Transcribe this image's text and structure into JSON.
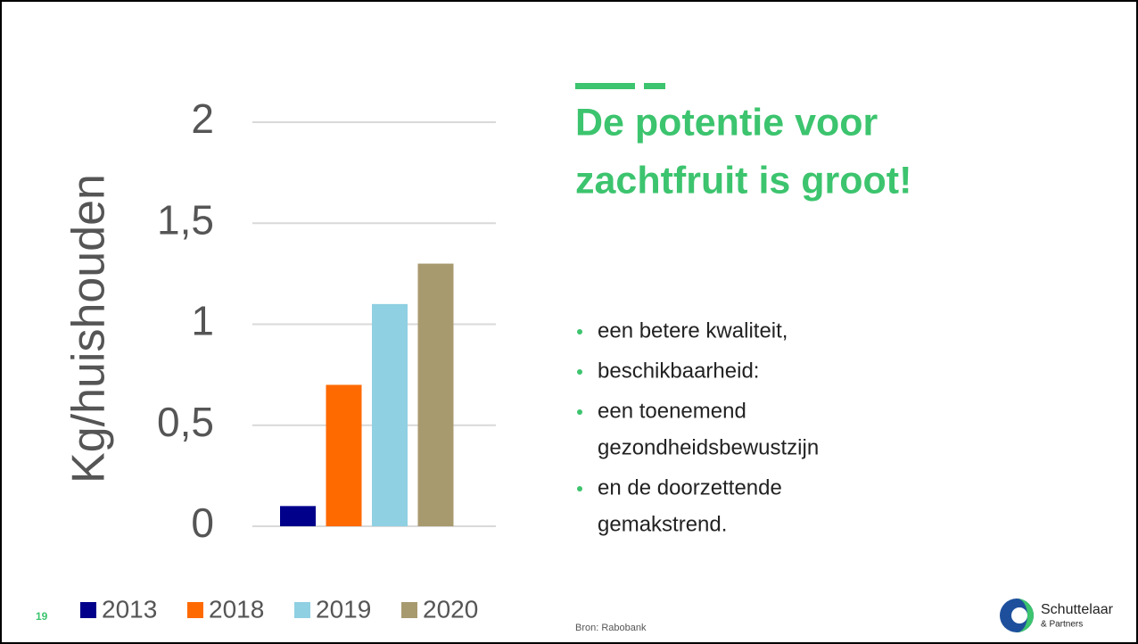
{
  "chart_data": {
    "type": "bar",
    "ylabel": "Kg/huishouden",
    "series": [
      {
        "name": "2013",
        "color": "#00008b",
        "values": [
          0.1
        ]
      },
      {
        "name": "2018",
        "color": "#ff6a00",
        "values": [
          0.7
        ]
      },
      {
        "name": "2019",
        "color": "#8fd0e2",
        "values": [
          1.1
        ]
      },
      {
        "name": "2020",
        "color": "#a89a6f",
        "values": [
          1.3
        ]
      }
    ],
    "ylim": [
      0,
      2
    ],
    "yticks": [
      0,
      {
        "value": 0.5,
        "label": "0,5"
      },
      1,
      {
        "value": 1.5,
        "label": "1,5"
      },
      2
    ],
    "grid": true,
    "legend": "bottom"
  },
  "slide": {
    "title": [
      "De potentie voor",
      "zachtfruit is groot!"
    ],
    "bullets": [
      [
        "een betere kwaliteit,"
      ],
      [
        "beschikbaarheid:"
      ],
      [
        "een toenemend",
        "gezondheidsbewustzijn"
      ],
      [
        "en de doorzettende",
        "gemakstrend."
      ]
    ],
    "source": "Bron: Rabobank",
    "page": "19",
    "logo": [
      "Schuttelaar",
      "& Partners"
    ]
  }
}
